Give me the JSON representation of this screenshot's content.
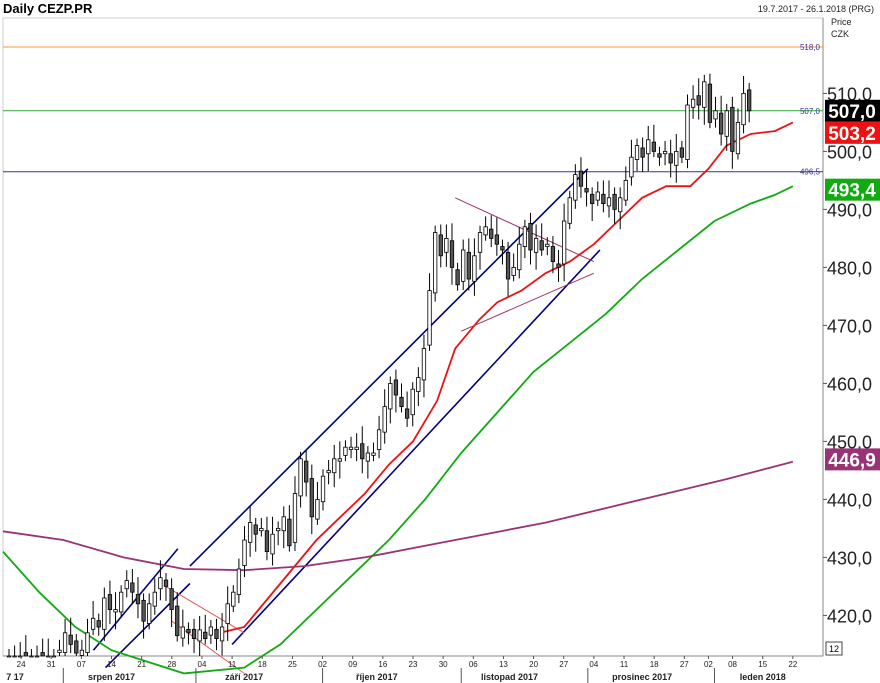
{
  "header": {
    "title": "Daily CEZP.PR",
    "date_range": "19.7.2017 - 26.1.2018 (PRG)"
  },
  "axis": {
    "price_label": "Price",
    "currency_label": "CZK",
    "corner_label": "12"
  },
  "chart_data": {
    "type": "candlestick",
    "title": "Daily CEZP.PR",
    "ylim": [
      413,
      523
    ],
    "y_ticks": [
      "420,0",
      "430,0",
      "440,0",
      "450,0",
      "460,0",
      "470,0",
      "480,0",
      "490,0",
      "500,0",
      "510,0"
    ],
    "y_tick_values": [
      420,
      430,
      440,
      450,
      460,
      470,
      480,
      490,
      500,
      510
    ],
    "x_day_ticks": [
      {
        "label": "24",
        "day": 3
      },
      {
        "label": "31",
        "day": 8
      },
      {
        "label": "07",
        "day": 13
      },
      {
        "label": "14",
        "day": 18
      },
      {
        "label": "21",
        "day": 23
      },
      {
        "label": "28",
        "day": 28
      },
      {
        "label": "04",
        "day": 33
      },
      {
        "label": "11",
        "day": 38
      },
      {
        "label": "18",
        "day": 43
      },
      {
        "label": "25",
        "day": 48
      },
      {
        "label": "02",
        "day": 53
      },
      {
        "label": "09",
        "day": 58
      },
      {
        "label": "16",
        "day": 63
      },
      {
        "label": "23",
        "day": 68
      },
      {
        "label": "30",
        "day": 73
      },
      {
        "label": "06",
        "day": 78
      },
      {
        "label": "13",
        "day": 83
      },
      {
        "label": "20",
        "day": 88
      },
      {
        "label": "27",
        "day": 93
      },
      {
        "label": "04",
        "day": 98
      },
      {
        "label": "11",
        "day": 103
      },
      {
        "label": "18",
        "day": 108
      },
      {
        "label": "27",
        "day": 113
      },
      {
        "label": "02",
        "day": 117
      },
      {
        "label": "08",
        "day": 121
      },
      {
        "label": "15",
        "day": 126
      },
      {
        "label": "22",
        "day": 131
      }
    ],
    "x_month_labels": [
      {
        "label": "7 17",
        "day": 2
      },
      {
        "label": "srpen 2017",
        "day": 18
      },
      {
        "label": "září 2017",
        "day": 40
      },
      {
        "label": "říjen 2017",
        "day": 62
      },
      {
        "label": "listopad 2017",
        "day": 84
      },
      {
        "label": "prosinec 2017",
        "day": 106
      },
      {
        "label": "leden 2018",
        "day": 126
      }
    ],
    "month_separators_day": [
      10,
      32,
      53,
      76,
      97,
      118
    ],
    "horizontal_levels": [
      {
        "value": 518.0,
        "label": "518,0",
        "color": "#ff9933"
      },
      {
        "value": 507.0,
        "label": "507,0",
        "color": "#33aa33"
      },
      {
        "value": 496.5,
        "label": "496,5",
        "color": "#333399"
      }
    ],
    "value_badges": [
      {
        "value": 507.0,
        "label": "507,0",
        "bg": "#000000",
        "fg": "#ffffff"
      },
      {
        "value": 503.2,
        "label": "503,2",
        "bg": "#ee1111",
        "fg": "#ffffff"
      },
      {
        "value": 493.4,
        "label": "493,4",
        "bg": "#11aa11",
        "fg": "#ffffff"
      },
      {
        "value": 446.9,
        "label": "446,9",
        "bg": "#993377",
        "fg": "#ffffff"
      }
    ],
    "closes": [
      413,
      413,
      413,
      413,
      413,
      413,
      413,
      413,
      413,
      414,
      417,
      415,
      413.5,
      414,
      417,
      419.5,
      418,
      423,
      421,
      421,
      424,
      426,
      424,
      422,
      419,
      422,
      424,
      426.5,
      425,
      421,
      416.5,
      418,
      417,
      416,
      417.5,
      416,
      418,
      416,
      418,
      422,
      424,
      428,
      433,
      436,
      434,
      435,
      431,
      434,
      435,
      437,
      432,
      441,
      447,
      443,
      437,
      440,
      444,
      445,
      447,
      447,
      449,
      449,
      449,
      447,
      448,
      448,
      452,
      456,
      460,
      458,
      456,
      454,
      459,
      461,
      466,
      476,
      486,
      482,
      485,
      480,
      477,
      483,
      478,
      482,
      486,
      487,
      485,
      484,
      483,
      478,
      480,
      484,
      487,
      483,
      485,
      483,
      484,
      481,
      480,
      488,
      492,
      496,
      494,
      493,
      491,
      493,
      491,
      492,
      490,
      492,
      495,
      499,
      501,
      499,
      502,
      500,
      499,
      500,
      498,
      500,
      499,
      508,
      509,
      508,
      512,
      505,
      507,
      503,
      507,
      500,
      505,
      510,
      507
    ],
    "series": [
      {
        "name": "",
        "color": "#ee1111",
        "values": [
          [
            36,
            417
          ],
          [
            40,
            418
          ],
          [
            44,
            423
          ],
          [
            48,
            428
          ],
          [
            52,
            433
          ],
          [
            56,
            437
          ],
          [
            60,
            441
          ],
          [
            64,
            446
          ],
          [
            68,
            450
          ],
          [
            72,
            457
          ],
          [
            75,
            466
          ],
          [
            79,
            471
          ],
          [
            82,
            474
          ],
          [
            86,
            476
          ],
          [
            90,
            479
          ],
          [
            94,
            481
          ],
          [
            98,
            484
          ],
          [
            102,
            488
          ],
          [
            106,
            492
          ],
          [
            110,
            494
          ],
          [
            114,
            494
          ],
          [
            117,
            497
          ],
          [
            120,
            501
          ],
          [
            124,
            503
          ],
          [
            128,
            503.5
          ],
          [
            131,
            505
          ]
        ]
      },
      {
        "name": "",
        "color": "#11aa11",
        "values": [
          [
            0,
            431
          ],
          [
            6,
            424
          ],
          [
            12,
            418
          ],
          [
            18,
            414
          ],
          [
            30,
            410
          ],
          [
            40,
            411
          ],
          [
            46,
            415
          ],
          [
            52,
            421
          ],
          [
            58,
            427
          ],
          [
            64,
            433
          ],
          [
            70,
            440
          ],
          [
            76,
            448
          ],
          [
            82,
            455
          ],
          [
            88,
            462
          ],
          [
            94,
            467
          ],
          [
            100,
            472
          ],
          [
            106,
            478
          ],
          [
            112,
            483
          ],
          [
            118,
            488
          ],
          [
            124,
            491
          ],
          [
            128,
            492.5
          ],
          [
            131,
            494
          ]
        ]
      },
      {
        "name": "",
        "color": "#993377",
        "values": [
          [
            0,
            434.5
          ],
          [
            10,
            433
          ],
          [
            20,
            430
          ],
          [
            30,
            428
          ],
          [
            40,
            427.8
          ],
          [
            50,
            428.5
          ],
          [
            60,
            430
          ],
          [
            70,
            432
          ],
          [
            80,
            434
          ],
          [
            90,
            436
          ],
          [
            100,
            438.5
          ],
          [
            110,
            441
          ],
          [
            120,
            443.5
          ],
          [
            131,
            446.5
          ]
        ]
      }
    ],
    "trend_lines": [
      {
        "color": "#000080",
        "from": [
          15,
          414
        ],
        "to": [
          29,
          431.5
        ]
      },
      {
        "color": "#000080",
        "from": [
          17,
          411
        ],
        "to": [
          31,
          425.5
        ]
      },
      {
        "color": "#000080",
        "from": [
          31,
          428.5
        ],
        "to": [
          97,
          497
        ]
      },
      {
        "color": "#000080",
        "from": [
          38,
          415
        ],
        "to": [
          99,
          483
        ]
      },
      {
        "color": "#ee5555",
        "from": [
          27,
          425
        ],
        "to": [
          40,
          417
        ]
      },
      {
        "color": "#ee5555",
        "from": [
          28,
          419
        ],
        "to": [
          40,
          410
        ]
      },
      {
        "color": "#993366",
        "from": [
          75,
          492
        ],
        "to": [
          98,
          481
        ]
      },
      {
        "color": "#993366",
        "from": [
          76,
          469
        ],
        "to": [
          98,
          479
        ]
      }
    ]
  }
}
